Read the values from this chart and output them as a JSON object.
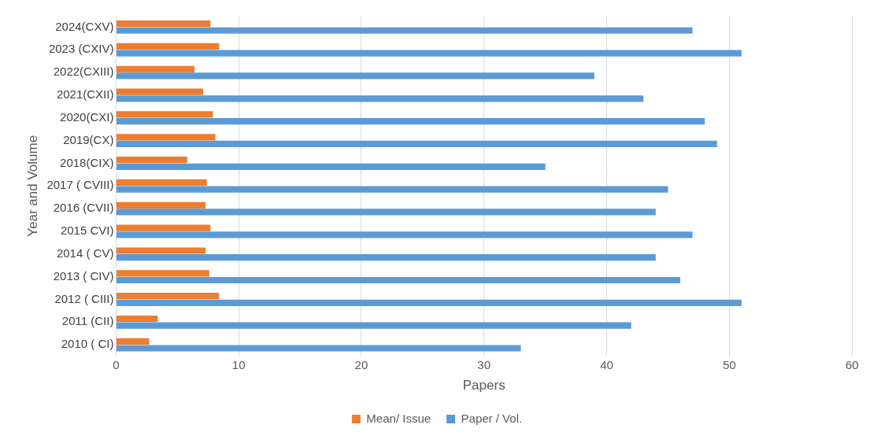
{
  "chart_data": {
    "type": "bar",
    "orientation": "horizontal",
    "xlabel": "Papers",
    "ylabel": "Year and Volume",
    "categories": [
      "2024(CXV)",
      "2023 (CXIV)",
      "2022(CXIII)",
      "2021(CXII)",
      "2020(CXI)",
      "2019(CX)",
      "2018(CIX)",
      "2017 ( CVIII)",
      "2016 (CVII)",
      "2015 CVI)",
      "2014 ( CV)",
      "2013 ( CIV)",
      "2012 ( CIII)",
      "2011 (CII)",
      "2010 ( CI)"
    ],
    "series": [
      {
        "name": "Mean/ Issue",
        "color": "#ed7d31",
        "values": [
          7.7,
          8.4,
          6.4,
          7.1,
          7.9,
          8.1,
          5.8,
          7.4,
          7.3,
          7.7,
          7.3,
          7.6,
          8.4,
          3.4,
          2.7
        ]
      },
      {
        "name": "Paper / Vol.",
        "color": "#5b9bd5",
        "values": [
          47,
          51,
          39,
          43,
          48,
          49,
          35,
          45,
          44,
          47,
          44,
          46,
          51,
          42,
          33
        ]
      }
    ],
    "xlim": [
      0,
      60
    ],
    "xticks": [
      0,
      10,
      20,
      30,
      40,
      50,
      60
    ],
    "grid": "x",
    "legend": "bottom"
  }
}
